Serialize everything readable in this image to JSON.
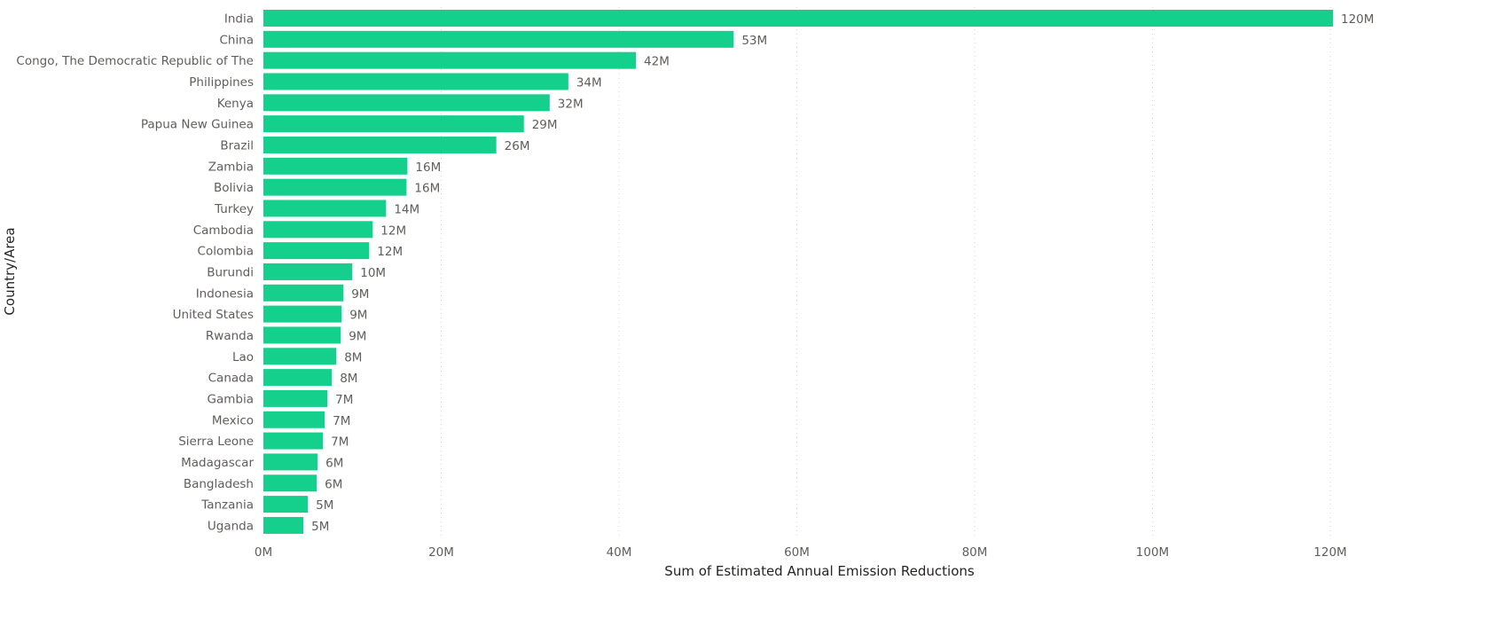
{
  "chart_data": {
    "type": "bar",
    "orientation": "horizontal",
    "categories": [
      "India",
      "China",
      "Congo, The Democratic Republic of The",
      "Philippines",
      "Kenya",
      "Papua New Guinea",
      "Brazil",
      "Zambia",
      "Bolivia",
      "Turkey",
      "Cambodia",
      "Colombia",
      "Burundi",
      "Indonesia",
      "United States",
      "Rwanda",
      "Lao",
      "Canada",
      "Gambia",
      "Mexico",
      "Sierra Leone",
      "Madagascar",
      "Bangladesh",
      "Tanzania",
      "Uganda"
    ],
    "values": [
      120300000,
      52900000,
      41900000,
      34300000,
      32200000,
      29300000,
      26200000,
      16200000,
      16100000,
      13800000,
      12300000,
      11900000,
      10000000,
      9000000,
      8800000,
      8700000,
      8200000,
      7700000,
      7200000,
      6900000,
      6700000,
      6100000,
      6000000,
      5000000,
      4500000
    ],
    "value_labels": [
      "120M",
      "53M",
      "42M",
      "34M",
      "32M",
      "29M",
      "26M",
      "16M",
      "16M",
      "14M",
      "12M",
      "12M",
      "10M",
      "9M",
      "9M",
      "9M",
      "8M",
      "8M",
      "7M",
      "7M",
      "7M",
      "6M",
      "6M",
      "5M",
      "5M"
    ],
    "title": "",
    "xlabel": "Sum of Estimated Annual Emission Reductions",
    "ylabel": "Country/Area",
    "xlim": [
      0,
      120000000
    ],
    "xticks": [
      0,
      20000000,
      40000000,
      60000000,
      80000000,
      100000000,
      120000000
    ],
    "xtick_labels": [
      "0M",
      "20M",
      "40M",
      "60M",
      "80M",
      "100M",
      "120M"
    ],
    "grid": true,
    "bar_color": "#15cf8c"
  }
}
